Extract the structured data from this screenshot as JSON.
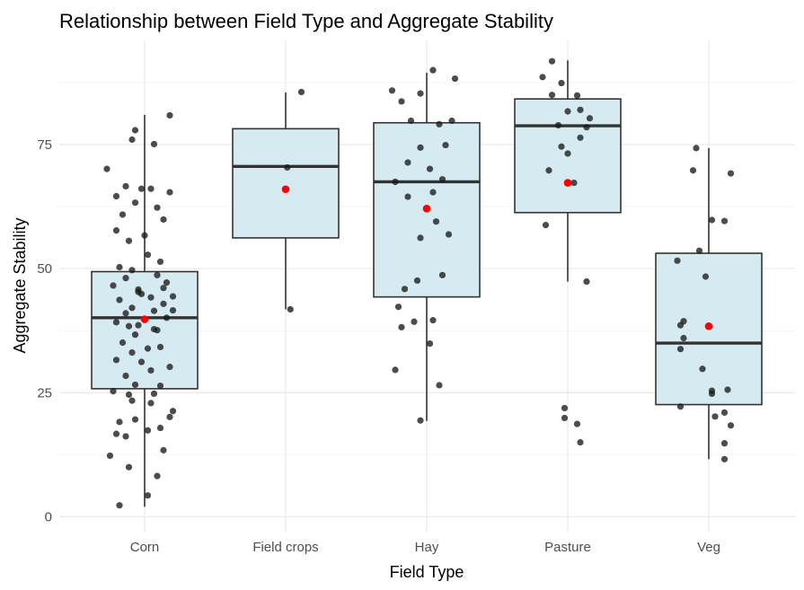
{
  "chart_data": {
    "type": "box",
    "title": "Relationship between Field Type and Aggregate Stability",
    "xlabel": "Field Type",
    "ylabel": "Aggregate Stability",
    "categories": [
      "Corn",
      "Field crops",
      "Hay",
      "Pasture",
      "Veg"
    ],
    "ylim": [
      -3,
      96
    ],
    "yticks": [
      0,
      25,
      50,
      75
    ],
    "grid": true,
    "legend": "none",
    "colors": {
      "box_fill": "#d6eaf1",
      "box_stroke": "#333333",
      "median": "#333333",
      "mean": "#ff0000",
      "points": "#1a1a1a",
      "grid_major": "#ebebeb",
      "grid_minor": "#f4f4f4"
    },
    "boxes": [
      {
        "category": "Corn",
        "whisker_low": 2,
        "q1": 25.8,
        "median": 40.1,
        "q3": 49.4,
        "whisker_high": 81,
        "mean": 39.8
      },
      {
        "category": "Field crops",
        "whisker_low": 41.8,
        "q1": 56.2,
        "median": 70.6,
        "q3": 78.2,
        "whisker_high": 85.5,
        "mean": 66
      },
      {
        "category": "Hay",
        "whisker_low": 19.3,
        "q1": 44.3,
        "median": 67.5,
        "q3": 79.4,
        "whisker_high": 89.5,
        "mean": 62.1
      },
      {
        "category": "Pasture",
        "whisker_low": 47.4,
        "q1": 61.3,
        "median": 78.8,
        "q3": 84.2,
        "whisker_high": 92,
        "mean": 67.3
      },
      {
        "category": "Veg",
        "whisker_low": 11.6,
        "q1": 22.6,
        "median": 35,
        "q3": 53.1,
        "whisker_high": 74.3,
        "mean": 38.4
      }
    ],
    "points": [
      {
        "category": "Corn",
        "values": [
          [
            -1.2,
            70.1
          ],
          [
            -0.9,
            64.6
          ],
          [
            -0.4,
            76.0
          ],
          [
            -0.3,
            77.9
          ],
          [
            0.3,
            75.1
          ],
          [
            0.8,
            80.9
          ],
          [
            -0.7,
            60.9
          ],
          [
            -0.3,
            63.3
          ],
          [
            0.2,
            66.1
          ],
          [
            0.8,
            65.4
          ],
          [
            -0.6,
            66.6
          ],
          [
            -0.1,
            66.1
          ],
          [
            0.4,
            62.3
          ],
          [
            -0.9,
            57.7
          ],
          [
            -0.5,
            55.6
          ],
          [
            0.0,
            56.7
          ],
          [
            0.6,
            59.9
          ],
          [
            -0.8,
            50.3
          ],
          [
            -0.4,
            49.7
          ],
          [
            0.1,
            52.8
          ],
          [
            0.5,
            51.4
          ],
          [
            -1.0,
            46.6
          ],
          [
            -0.6,
            48.1
          ],
          [
            -0.2,
            45.3
          ],
          [
            0.2,
            44.2
          ],
          [
            0.6,
            46.1
          ],
          [
            0.9,
            44.4
          ],
          [
            -0.8,
            43.7
          ],
          [
            -0.4,
            42.1
          ],
          [
            -0.1,
            44.9
          ],
          [
            0.3,
            41.5
          ],
          [
            0.7,
            40.1
          ],
          [
            -0.9,
            39.2
          ],
          [
            -0.5,
            38.4
          ],
          [
            0.0,
            39.9
          ],
          [
            0.4,
            37.6
          ],
          [
            0.9,
            41.6
          ],
          [
            -0.7,
            35.1
          ],
          [
            -0.3,
            36.7
          ],
          [
            0.1,
            33.9
          ],
          [
            0.5,
            34.2
          ],
          [
            -0.9,
            31.6
          ],
          [
            -0.1,
            31.2
          ],
          [
            0.8,
            30.2
          ],
          [
            -0.6,
            28.4
          ],
          [
            0.2,
            29.5
          ],
          [
            -0.3,
            26.6
          ],
          [
            0.5,
            26.4
          ],
          [
            -1.0,
            25.3
          ],
          [
            -0.5,
            24.6
          ],
          [
            0.3,
            24.8
          ],
          [
            -0.8,
            19.1
          ],
          [
            -0.4,
            23.4
          ],
          [
            0.2,
            22.9
          ],
          [
            0.9,
            21.3
          ],
          [
            -0.9,
            16.7
          ],
          [
            -0.3,
            19.6
          ],
          [
            0.5,
            17.9
          ],
          [
            0.8,
            20.1
          ],
          [
            -0.6,
            16.2
          ],
          [
            0.1,
            17.4
          ],
          [
            0.6,
            13.4
          ],
          [
            -1.1,
            12.3
          ],
          [
            -0.5,
            10.0
          ],
          [
            0.4,
            8.2
          ],
          [
            -0.8,
            2.3
          ],
          [
            0.1,
            4.3
          ],
          [
            -0.2,
            45.8
          ],
          [
            0.6,
            42.9
          ],
          [
            -0.6,
            41.0
          ],
          [
            0.3,
            37.8
          ],
          [
            -0.2,
            38.6
          ],
          [
            0.7,
            47.2
          ],
          [
            -0.4,
            33.1
          ],
          [
            0.4,
            48.7
          ]
        ]
      },
      {
        "category": "Field crops",
        "values": [
          [
            0.5,
            85.6
          ],
          [
            0.05,
            70.4
          ],
          [
            0.15,
            41.8
          ]
        ]
      },
      {
        "category": "Hay",
        "values": [
          [
            -1.1,
            85.9
          ],
          [
            -0.2,
            85.3
          ],
          [
            0.2,
            90.0
          ],
          [
            0.9,
            88.3
          ],
          [
            -0.8,
            83.7
          ],
          [
            -0.5,
            79.8
          ],
          [
            0.4,
            79.1
          ],
          [
            0.8,
            79.8
          ],
          [
            -0.2,
            74.4
          ],
          [
            0.6,
            74.9
          ],
          [
            -0.6,
            71.4
          ],
          [
            0.1,
            70.1
          ],
          [
            0.5,
            68.0
          ],
          [
            -1.0,
            67.5
          ],
          [
            0.2,
            65.4
          ],
          [
            -0.6,
            64.5
          ],
          [
            0.7,
            56.9
          ],
          [
            -0.2,
            56.2
          ],
          [
            0.3,
            59.5
          ],
          [
            -0.3,
            47.6
          ],
          [
            0.5,
            48.7
          ],
          [
            -0.7,
            45.9
          ],
          [
            -0.9,
            42.3
          ],
          [
            0.2,
            39.6
          ],
          [
            -0.4,
            39.3
          ],
          [
            -0.8,
            38.2
          ],
          [
            0.1,
            34.9
          ],
          [
            -1.0,
            29.6
          ],
          [
            0.4,
            26.5
          ],
          [
            -0.2,
            19.4
          ]
        ]
      },
      {
        "category": "Pasture",
        "values": [
          [
            -0.5,
            91.8
          ],
          [
            -0.8,
            88.6
          ],
          [
            -0.2,
            87.4
          ],
          [
            0.3,
            84.9
          ],
          [
            0.4,
            82.0
          ],
          [
            -0.5,
            85.0
          ],
          [
            0.0,
            81.7
          ],
          [
            0.7,
            80.3
          ],
          [
            -0.3,
            78.9
          ],
          [
            0.6,
            78.5
          ],
          [
            0.4,
            76.4
          ],
          [
            -0.2,
            74.6
          ],
          [
            0.0,
            73.2
          ],
          [
            -0.6,
            69.8
          ],
          [
            0.2,
            67.3
          ],
          [
            -0.7,
            58.8
          ],
          [
            0.6,
            47.4
          ],
          [
            -0.1,
            21.9
          ],
          [
            -0.1,
            19.9
          ],
          [
            0.3,
            18.7
          ],
          [
            0.4,
            15.0
          ]
        ]
      },
      {
        "category": "Veg",
        "values": [
          [
            -0.4,
            74.3
          ],
          [
            -0.5,
            69.8
          ],
          [
            0.7,
            69.2
          ],
          [
            0.1,
            59.8
          ],
          [
            0.5,
            59.6
          ],
          [
            -1.0,
            51.6
          ],
          [
            -0.3,
            53.6
          ],
          [
            -0.1,
            48.4
          ],
          [
            -0.8,
            39.4
          ],
          [
            -0.9,
            38.6
          ],
          [
            -0.8,
            36.0
          ],
          [
            -0.9,
            33.8
          ],
          [
            -0.2,
            29.8
          ],
          [
            0.1,
            25.4
          ],
          [
            0.1,
            24.8
          ],
          [
            0.6,
            25.6
          ],
          [
            -0.9,
            22.2
          ],
          [
            0.2,
            20.2
          ],
          [
            0.5,
            21.0
          ],
          [
            0.7,
            18.4
          ],
          [
            0.5,
            14.8
          ],
          [
            0.5,
            11.6
          ]
        ]
      }
    ]
  }
}
